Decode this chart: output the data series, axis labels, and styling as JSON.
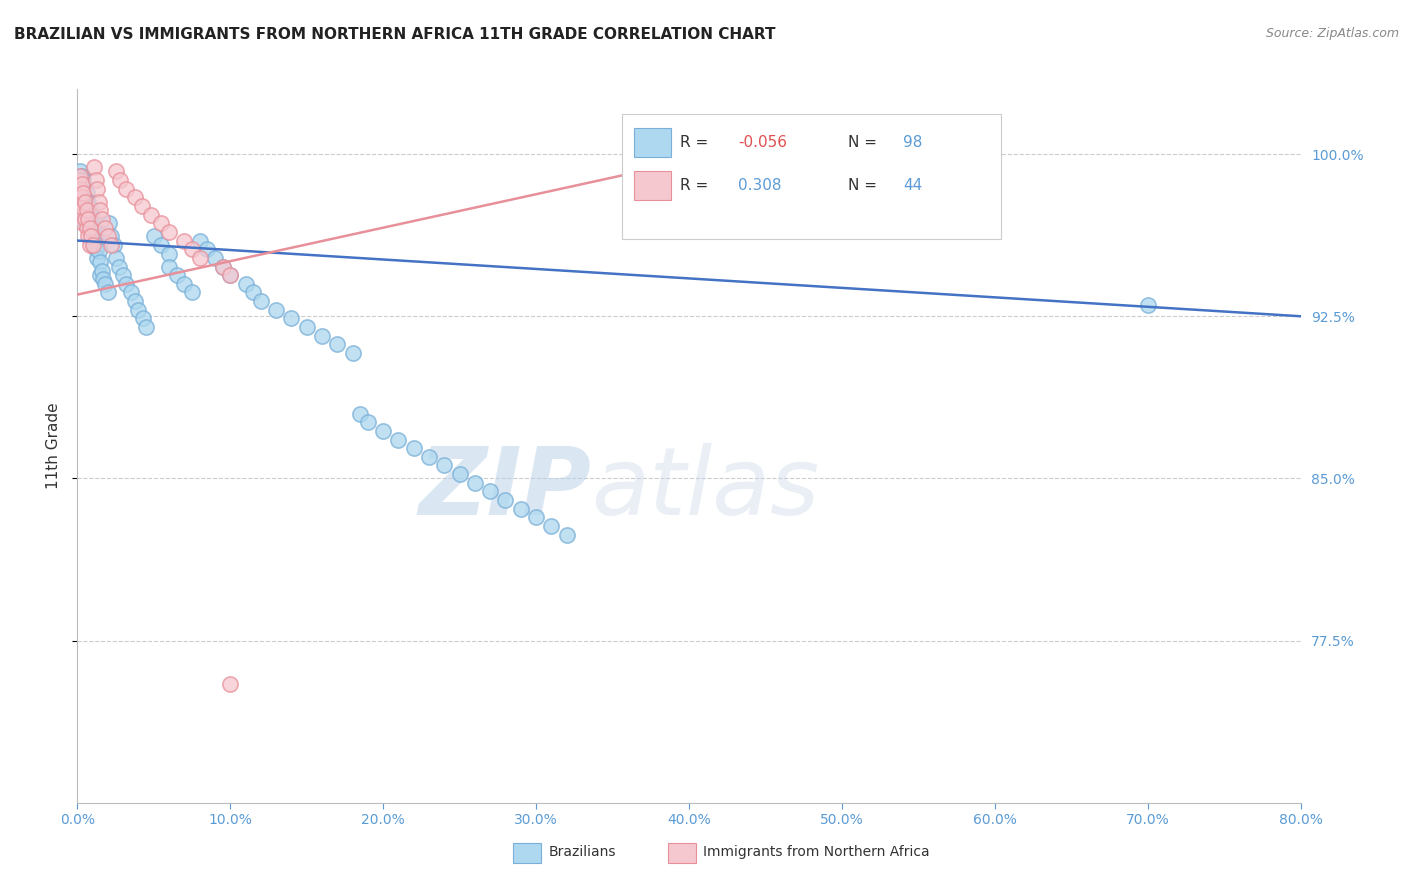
{
  "title": "BRAZILIAN VS IMMIGRANTS FROM NORTHERN AFRICA 11TH GRADE CORRELATION CHART",
  "source": "Source: ZipAtlas.com",
  "ylabel": "11th Grade",
  "ylabel_right_values": [
    1.0,
    0.925,
    0.85,
    0.775
  ],
  "ylabel_right_labels": [
    "100.0%",
    "92.5%",
    "85.0%",
    "77.5%"
  ],
  "blue_scatter_x": [
    0.001,
    0.001,
    0.001,
    0.001,
    0.002,
    0.002,
    0.002,
    0.002,
    0.002,
    0.003,
    0.003,
    0.003,
    0.003,
    0.003,
    0.004,
    0.004,
    0.004,
    0.004,
    0.005,
    0.005,
    0.005,
    0.005,
    0.006,
    0.006,
    0.006,
    0.007,
    0.007,
    0.008,
    0.008,
    0.008,
    0.009,
    0.009,
    0.01,
    0.01,
    0.01,
    0.011,
    0.011,
    0.012,
    0.012,
    0.013,
    0.013,
    0.014,
    0.015,
    0.015,
    0.016,
    0.017,
    0.018,
    0.02,
    0.021,
    0.022,
    0.024,
    0.025,
    0.027,
    0.03,
    0.032,
    0.035,
    0.038,
    0.04,
    0.043,
    0.045,
    0.05,
    0.055,
    0.06,
    0.06,
    0.065,
    0.07,
    0.075,
    0.08,
    0.085,
    0.09,
    0.095,
    0.1,
    0.11,
    0.115,
    0.12,
    0.13,
    0.14,
    0.15,
    0.16,
    0.17,
    0.18,
    0.185,
    0.19,
    0.2,
    0.21,
    0.22,
    0.23,
    0.24,
    0.25,
    0.26,
    0.27,
    0.28,
    0.29,
    0.3,
    0.31,
    0.32,
    0.7
  ],
  "blue_scatter_y": [
    0.99,
    0.985,
    0.98,
    0.975,
    0.992,
    0.988,
    0.985,
    0.98,
    0.975,
    0.99,
    0.985,
    0.98,
    0.975,
    0.97,
    0.988,
    0.983,
    0.978,
    0.973,
    0.985,
    0.98,
    0.975,
    0.968,
    0.982,
    0.977,
    0.97,
    0.978,
    0.972,
    0.975,
    0.97,
    0.965,
    0.972,
    0.967,
    0.97,
    0.965,
    0.958,
    0.966,
    0.96,
    0.962,
    0.956,
    0.958,
    0.952,
    0.955,
    0.95,
    0.944,
    0.946,
    0.942,
    0.94,
    0.936,
    0.968,
    0.962,
    0.958,
    0.952,
    0.948,
    0.944,
    0.94,
    0.936,
    0.932,
    0.928,
    0.924,
    0.92,
    0.962,
    0.958,
    0.954,
    0.948,
    0.944,
    0.94,
    0.936,
    0.96,
    0.956,
    0.952,
    0.948,
    0.944,
    0.94,
    0.936,
    0.932,
    0.928,
    0.924,
    0.92,
    0.916,
    0.912,
    0.908,
    0.88,
    0.876,
    0.872,
    0.868,
    0.864,
    0.86,
    0.856,
    0.852,
    0.848,
    0.844,
    0.84,
    0.836,
    0.832,
    0.828,
    0.824,
    0.93
  ],
  "pink_scatter_x": [
    0.001,
    0.001,
    0.001,
    0.002,
    0.002,
    0.002,
    0.003,
    0.003,
    0.003,
    0.004,
    0.004,
    0.004,
    0.005,
    0.005,
    0.006,
    0.006,
    0.007,
    0.007,
    0.008,
    0.008,
    0.009,
    0.01,
    0.011,
    0.012,
    0.013,
    0.014,
    0.015,
    0.016,
    0.018,
    0.02,
    0.022,
    0.025,
    0.028,
    0.032,
    0.038,
    0.042,
    0.048,
    0.055,
    0.06,
    0.07,
    0.075,
    0.08,
    0.095,
    0.1,
    0.1
  ],
  "pink_scatter_y": [
    0.988,
    0.982,
    0.975,
    0.99,
    0.984,
    0.978,
    0.986,
    0.98,
    0.972,
    0.982,
    0.975,
    0.968,
    0.978,
    0.97,
    0.974,
    0.966,
    0.97,
    0.962,
    0.966,
    0.958,
    0.962,
    0.958,
    0.994,
    0.988,
    0.984,
    0.978,
    0.974,
    0.97,
    0.966,
    0.962,
    0.958,
    0.992,
    0.988,
    0.984,
    0.98,
    0.976,
    0.972,
    0.968,
    0.964,
    0.96,
    0.956,
    0.952,
    0.948,
    0.944,
    0.755
  ],
  "blue_line_x": [
    0.0,
    0.8
  ],
  "blue_line_y": [
    0.96,
    0.925
  ],
  "pink_line_x": [
    0.0,
    0.42
  ],
  "pink_line_y": [
    0.935,
    1.0
  ],
  "xmin": 0.0,
  "xmax": 0.8,
  "ymin": 0.7,
  "ymax": 1.03,
  "blue_color": "#7ab0d8",
  "pink_color": "#e8909a",
  "blue_line_color": "#4472c4",
  "pink_line_color": "#e8909a",
  "watermark_zip": "ZIP",
  "watermark_atlas": "atlas",
  "background_color": "#ffffff",
  "grid_color": "#cccccc"
}
